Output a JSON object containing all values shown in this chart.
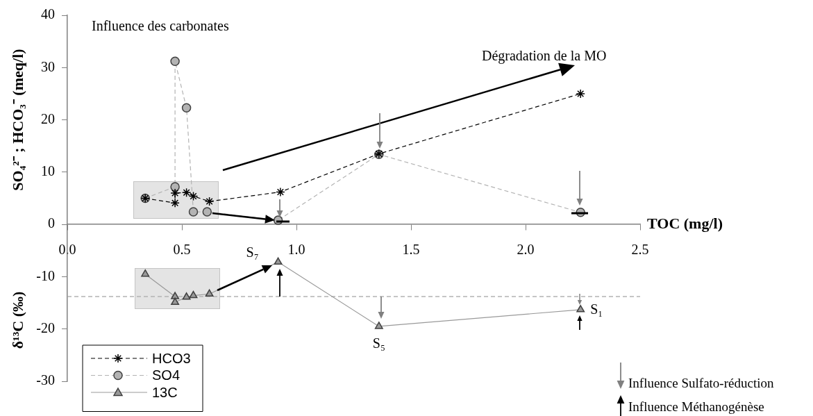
{
  "chart_data": {
    "type": "line",
    "xlabel": "TOC (mg/l)",
    "ylabel": "SO₄²⁻ ; HCO₃⁻ (meq/l)",
    "xlim": [
      0,
      2.5
    ],
    "xticks": [
      {
        "value": 0,
        "label": "0.0"
      },
      {
        "value": 0.5,
        "label": "0.5"
      },
      {
        "value": 1,
        "label": "1.0"
      },
      {
        "value": 1.5,
        "label": "1.5"
      },
      {
        "value": 2,
        "label": "2.0"
      },
      {
        "value": 2.5,
        "label": "2.5"
      }
    ],
    "ylim": [
      -30,
      40
    ],
    "yticks": [
      -30,
      -20,
      -10,
      0,
      10,
      20,
      30,
      40
    ],
    "legend": "bottom left",
    "series": [
      {
        "name": "HCO3",
        "marker": "cross",
        "line_style": "dashed",
        "color": "#000000",
        "x": [
          0.34,
          0.47,
          0.47,
          0.52,
          0.55,
          0.62,
          0.93,
          1.36,
          2.24
        ],
        "values": [
          5.0,
          4.1,
          6.0,
          6.1,
          5.4,
          4.4,
          6.2,
          13.5,
          25.0
        ]
      },
      {
        "name": "SO4",
        "marker": "circle",
        "line_style": "dashed",
        "color": "#b3b3b3",
        "x": [
          0.34,
          0.47,
          0.47,
          0.52,
          0.55,
          0.61,
          0.92,
          1.36,
          2.24
        ],
        "values": [
          5.0,
          7.2,
          31.2,
          22.3,
          2.4,
          2.4,
          0.8,
          13.4,
          2.3
        ]
      },
      {
        "name": "13C",
        "marker": "triangle",
        "line_style": "solid",
        "color": "#999999",
        "x": [
          0.34,
          0.47,
          0.47,
          0.52,
          0.55,
          0.62,
          0.92,
          1.36,
          2.24
        ],
        "values": [
          -9.5,
          -13.8,
          -14.9,
          -13.9,
          -13.6,
          -13.3,
          -7.2,
          -19.5,
          -16.3
        ]
      }
    ],
    "ref_lines": [
      {
        "axis": "y",
        "value": -13.8,
        "color": "#b3b3b3",
        "line_style": "dashed"
      }
    ],
    "annotations": [
      "Influence des carbonates",
      "Dégradation de la MO",
      {
        "text": "S₇",
        "x": 0.92,
        "y": -7.2
      },
      {
        "text": "S₅",
        "x": 1.36,
        "y": -19.5
      },
      {
        "text": "S₁",
        "x": 2.24,
        "y": -16.3
      },
      "Influence Sulfato-réduction",
      "Influence Méthanogénèse",
      "δ¹³C (‰)"
    ]
  }
}
